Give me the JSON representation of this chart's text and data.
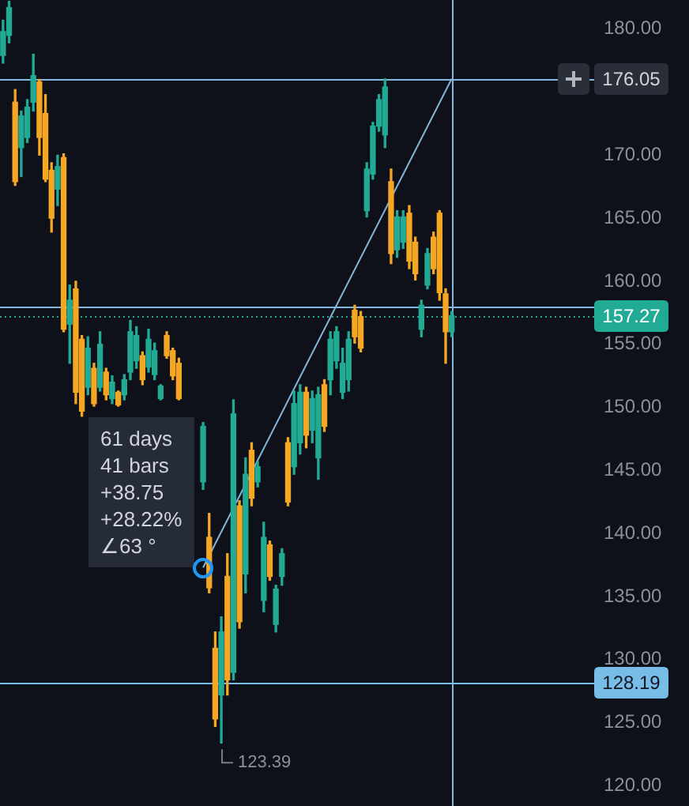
{
  "chart_data": {
    "type": "candlestick",
    "categories": [
      null,
      null,
      null,
      null,
      null,
      null,
      null,
      null,
      null,
      null,
      null,
      null,
      null,
      null,
      null,
      null,
      null,
      null,
      null,
      null,
      null,
      null,
      null,
      null,
      null,
      null,
      null,
      null,
      null,
      null,
      null,
      null,
      null,
      null,
      null,
      null,
      null,
      null,
      null,
      null,
      null,
      null,
      null,
      null,
      null,
      null,
      null,
      null,
      null,
      null,
      null,
      null,
      null,
      null,
      null,
      null,
      null,
      null,
      null,
      null,
      null,
      null,
      null,
      null,
      null,
      null,
      null,
      null,
      null,
      null,
      null,
      null,
      null,
      null,
      null,
      null,
      null,
      null,
      null,
      null,
      null,
      null,
      null,
      null,
      null,
      null,
      null,
      null,
      null,
      null,
      null,
      null,
      null,
      null,
      null,
      null,
      null,
      null
    ],
    "ohlc": [
      [
        177.9,
        180.7,
        177.3,
        179.8
      ],
      [
        179.5,
        182.2,
        178.9,
        181.7
      ],
      [
        174.2,
        175.2,
        167.6,
        167.9
      ],
      [
        170.6,
        173.5,
        168.3,
        173.1
      ],
      [
        171.4,
        174.4,
        171.0,
        173.8
      ],
      [
        174.2,
        178.0,
        173.5,
        176.3
      ],
      [
        175.8,
        176.0,
        170.0,
        171.4
      ],
      [
        173.3,
        174.8,
        167.9,
        168.1
      ],
      [
        168.8,
        169.4,
        163.9,
        165.0
      ],
      [
        167.3,
        170.0,
        166.0,
        169.1
      ],
      [
        169.8,
        170.1,
        156.0,
        156.2
      ],
      [
        156.6,
        159.7,
        153.5,
        158.5
      ],
      [
        159.4,
        160.0,
        150.3,
        151.2
      ],
      [
        155.4,
        155.7,
        149.3,
        149.7
      ],
      [
        151.6,
        155.6,
        151.0,
        154.7
      ],
      [
        153.1,
        153.5,
        150.1,
        150.3
      ],
      [
        151.6,
        156.0,
        151.3,
        155.0
      ],
      [
        152.8,
        153.1,
        150.6,
        151.0
      ],
      [
        150.7,
        152.5,
        150.3,
        152.0
      ],
      [
        151.2,
        151.3,
        150.1,
        150.2
      ],
      [
        151.0,
        152.6,
        150.6,
        152.2
      ],
      [
        152.8,
        156.9,
        152.2,
        156.0
      ],
      [
        153.7,
        156.4,
        153.1,
        155.7
      ],
      [
        154.1,
        154.4,
        151.8,
        152.2
      ],
      [
        153.2,
        156.2,
        152.8,
        155.4
      ],
      [
        152.6,
        155.1,
        152.2,
        154.5
      ],
      [
        150.7,
        151.8,
        150.6,
        151.7
      ],
      [
        155.7,
        156.0,
        153.9,
        154.1
      ],
      [
        154.5,
        154.7,
        152.2,
        152.5
      ],
      [
        153.5,
        153.9,
        150.6,
        150.7
      ],
      null,
      null,
      null,
      [
        144.1,
        148.8,
        143.5,
        148.5
      ],
      [
        139.7,
        141.6,
        135.3,
        135.7
      ],
      [
        130.9,
        132.2,
        124.7,
        125.3
      ],
      [
        127.2,
        133.4,
        123.39,
        132.2
      ],
      [
        136.6,
        138.4,
        127.2,
        128.4
      ],
      [
        129.0,
        150.6,
        128.4,
        149.5
      ],
      [
        142.2,
        142.6,
        132.5,
        133.0
      ],
      [
        136.8,
        146.0,
        135.3,
        144.7
      ],
      [
        146.6,
        147.2,
        142.2,
        142.8
      ],
      [
        144.1,
        145.7,
        143.7,
        145.3
      ],
      [
        134.7,
        140.9,
        133.8,
        139.7
      ],
      [
        139.1,
        139.4,
        136.3,
        136.6
      ],
      [
        132.8,
        135.9,
        132.2,
        135.6
      ],
      [
        136.6,
        138.8,
        135.9,
        138.4
      ],
      [
        147.2,
        147.6,
        142.2,
        142.5
      ],
      [
        145.3,
        151.3,
        144.7,
        150.3
      ],
      [
        147.2,
        151.8,
        146.3,
        151.2
      ],
      [
        151.2,
        151.6,
        146.8,
        147.8
      ],
      [
        148.2,
        151.3,
        147.2,
        150.7
      ],
      [
        146.0,
        151.6,
        144.3,
        151.0
      ],
      [
        151.8,
        152.2,
        148.1,
        148.5
      ],
      [
        152.2,
        156.0,
        151.0,
        155.4
      ],
      [
        153.7,
        156.4,
        153.1,
        156.0
      ],
      [
        151.2,
        154.7,
        150.7,
        153.5
      ],
      [
        152.2,
        156.0,
        151.3,
        155.4
      ],
      [
        157.7,
        158.1,
        155.1,
        155.6
      ],
      [
        157.2,
        157.6,
        154.4,
        154.7
      ],
      [
        165.6,
        169.4,
        165.1,
        168.9
      ],
      [
        168.5,
        172.6,
        168.1,
        172.3
      ],
      [
        172.3,
        174.8,
        171.9,
        174.4
      ],
      [
        171.6,
        176.05,
        170.6,
        175.4
      ],
      [
        167.9,
        168.9,
        161.4,
        162.2
      ],
      [
        162.5,
        165.6,
        161.9,
        165.1
      ],
      [
        163.1,
        165.6,
        162.6,
        165.1
      ],
      [
        165.4,
        166.0,
        161.0,
        161.6
      ],
      [
        163.1,
        163.5,
        160.1,
        160.6
      ],
      [
        156.2,
        158.5,
        155.6,
        158.1
      ],
      [
        159.7,
        162.6,
        159.4,
        162.2
      ],
      [
        163.5,
        163.9,
        160.6,
        161.0
      ],
      [
        165.4,
        165.6,
        158.5,
        159.1
      ],
      [
        159.0,
        159.4,
        153.5,
        156.0
      ],
      [
        156.0,
        157.6,
        155.6,
        157.27
      ],
      null,
      null,
      null,
      null,
      null,
      null,
      null,
      null,
      null,
      null,
      null,
      null,
      null,
      null,
      null,
      null,
      null,
      null,
      null,
      null,
      null,
      null,
      null
    ],
    "colors": [
      "#22ab94",
      "#22ab94",
      "#f5a623",
      "#22ab94",
      "#22ab94",
      "#22ab94",
      "#f5a623",
      "#f5a623",
      "#f5a623",
      "#22ab94",
      "#f5a623",
      "#22ab94",
      "#f5a623",
      "#f5a623",
      "#22ab94",
      "#f5a623",
      "#22ab94",
      "#f5a623",
      "#22ab94",
      "#f5a623",
      "#22ab94",
      "#22ab94",
      "#22ab94",
      "#f5a623",
      "#22ab94",
      "#22ab94",
      "#22ab94",
      "#f5a623",
      "#f5a623",
      "#f5a623",
      null,
      null,
      null,
      "#22ab94",
      "#f5a623",
      "#f5a623",
      "#22ab94",
      "#f5a623",
      "#22ab94",
      "#f5a623",
      "#22ab94",
      "#f5a623",
      "#22ab94",
      "#22ab94",
      "#f5a623",
      "#22ab94",
      "#22ab94",
      "#f5a623",
      "#22ab94",
      "#22ab94",
      "#f5a623",
      "#22ab94",
      "#22ab94",
      "#f5a623",
      "#22ab94",
      "#22ab94",
      "#22ab94",
      "#22ab94",
      "#f5a623",
      "#f5a623",
      "#22ab94",
      "#22ab94",
      "#22ab94",
      "#22ab94",
      "#f5a623",
      "#22ab94",
      "#22ab94",
      "#f5a623",
      "#f5a623",
      "#22ab94",
      "#22ab94",
      "#f5a623",
      "#f5a623",
      "#f5a623",
      "#22ab94",
      null,
      null,
      null,
      null,
      null,
      null,
      null,
      null,
      null,
      null,
      null,
      null,
      null,
      null,
      null,
      null,
      null,
      null,
      null,
      null,
      null,
      null,
      null
    ],
    "series": [
      {
        "type": "line",
        "color": "#82b6dc",
        "values": [
          null,
          null,
          null,
          null,
          null,
          null,
          null,
          null,
          null,
          null,
          null,
          null,
          null,
          null,
          null,
          null,
          null,
          null,
          null,
          null,
          null,
          null,
          null,
          null,
          null,
          null,
          null,
          null,
          null,
          null,
          null,
          null,
          null,
          137.3,
          null,
          null,
          null,
          null,
          null,
          null,
          null,
          null,
          null,
          null,
          null,
          null,
          null,
          null,
          null,
          null,
          null,
          null,
          null,
          null,
          null,
          null,
          null,
          null,
          null,
          null,
          null,
          null,
          null,
          null,
          null,
          null,
          null,
          null,
          null,
          null,
          null,
          null,
          null,
          null,
          176.05,
          null,
          null,
          null,
          null,
          null,
          null,
          null,
          null,
          null,
          null,
          null,
          null,
          null,
          null,
          null,
          null,
          null,
          null,
          null,
          null,
          null,
          null,
          null
        ]
      }
    ],
    "ylim": [
      118.4,
      182.3
    ],
    "yticks": [
      {
        "value": 120,
        "label": "120.00"
      },
      {
        "value": 125,
        "label": "125.00"
      },
      {
        "value": 130,
        "label": "130.00"
      },
      {
        "value": 135,
        "label": "135.00"
      },
      {
        "value": 140,
        "label": "140.00"
      },
      {
        "value": 145,
        "label": "145.00"
      },
      {
        "value": 150,
        "label": "150.00"
      },
      {
        "value": 155,
        "label": "155.00"
      },
      {
        "value": 160,
        "label": "160.00"
      },
      {
        "value": 165,
        "label": "165.00"
      },
      {
        "value": 170,
        "label": "170.00"
      },
      {
        "value": 180,
        "label": "180.00"
      }
    ],
    "tick_labels": "y",
    "ref_lines": [
      {
        "axis": "y",
        "value": 176.05,
        "label": "176.05",
        "color": "#82b6dc"
      },
      {
        "axis": "y",
        "value": 158.0,
        "color": "#82b6dc"
      },
      {
        "axis": "y",
        "value": 157.27,
        "label": "157.27",
        "color": "#22ab94",
        "line_style": "dotted"
      },
      {
        "axis": "y",
        "value": 128.19,
        "label": "128.19",
        "color": "#78bde8"
      }
    ],
    "annotations": [
      "61 days",
      "41 bars",
      "+38.75",
      "+28.22%",
      "∠63 °",
      "123.39"
    ]
  }
}
